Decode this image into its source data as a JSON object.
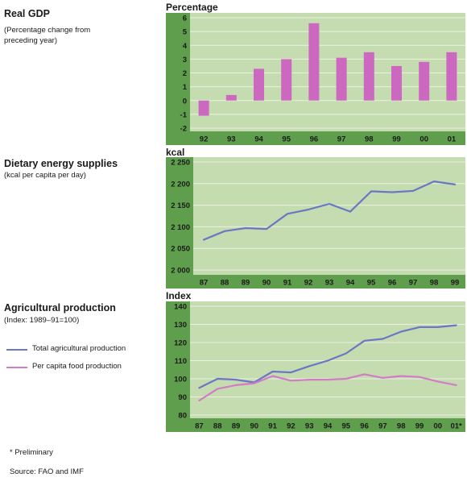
{
  "colors": {
    "plot_bg": "#c5dcb0",
    "axis_bg": "#5f9e4c",
    "grid": "#e9f1df",
    "bar": "#cc68c0",
    "line_total": "#6b76c4",
    "line_percapita": "#d27cc6",
    "label_text": "#1a1a1a"
  },
  "sections": {
    "gdp": {
      "title": "Real GDP",
      "subtitle": "(Percentage change from\npreceding year)",
      "unit": "Percentage"
    },
    "diet": {
      "title": "Dietary energy supplies",
      "subtitle": "(kcal per capita per day)",
      "unit": "kcal"
    },
    "agri": {
      "title": "Agricultural production",
      "subtitle": "(Index: 1989–91=100)",
      "unit": "Index"
    }
  },
  "legend": {
    "total": "Total agricultural production",
    "percapita": "Per capita food production"
  },
  "footnotes": {
    "preliminary": "* Preliminary",
    "source": "Source: FAO  and IMF"
  },
  "chart_data": [
    {
      "id": "gdp",
      "type": "bar",
      "title": "Real GDP",
      "subtitle": "(Percentage change from preceding year)",
      "ylabel": "Percentage",
      "categories": [
        "92",
        "93",
        "94",
        "95",
        "96",
        "97",
        "98",
        "99",
        "00",
        "01"
      ],
      "values": [
        -1.1,
        0.4,
        2.3,
        3.0,
        5.6,
        3.1,
        3.5,
        2.5,
        2.8,
        3.5
      ],
      "ylim": [
        -2,
        6
      ],
      "yticks": [
        -2,
        -1,
        0,
        1,
        2,
        3,
        4,
        5,
        6
      ],
      "ytick_labels": [
        "-2",
        "-1",
        "0",
        "1",
        "2",
        "3",
        "4",
        "5",
        "6"
      ],
      "grid": true
    },
    {
      "id": "diet",
      "type": "line",
      "title": "Dietary energy supplies",
      "subtitle": "(kcal per capita per day)",
      "ylabel": "kcal",
      "x": [
        "87",
        "88",
        "89",
        "90",
        "91",
        "92",
        "93",
        "94",
        "95",
        "96",
        "97",
        "98",
        "99"
      ],
      "series": [
        {
          "values": [
            2070,
            2090,
            2097,
            2095,
            2130,
            2140,
            2153,
            2135,
            2182,
            2180,
            2183,
            2205,
            2198
          ]
        }
      ],
      "ylim": [
        2000,
        2250
      ],
      "yticks": [
        2000,
        2050,
        2100,
        2150,
        2200,
        2250
      ],
      "ytick_labels": [
        "2 000",
        "2 050",
        "2 100",
        "2 150",
        "2 200",
        "2 250"
      ],
      "grid": true
    },
    {
      "id": "agri",
      "type": "line",
      "title": "Agricultural production",
      "subtitle": "(Index: 1989–91=100)",
      "ylabel": "Index",
      "x": [
        "87",
        "88",
        "89",
        "90",
        "91",
        "92",
        "93",
        "94",
        "95",
        "96",
        "97",
        "98",
        "99",
        "00",
        "01*"
      ],
      "series": [
        {
          "name": "Total agricultural production",
          "values": [
            95,
            100,
            99.5,
            98,
            104,
            103.5,
            107,
            110,
            114,
            121,
            122,
            126,
            128.5,
            128.5,
            129.5
          ]
        },
        {
          "name": "Per capita food production",
          "values": [
            88,
            94.5,
            96.5,
            97.5,
            101.5,
            99,
            99.5,
            99.5,
            100,
            102.5,
            100.5,
            101.5,
            101,
            98.5,
            96.5
          ]
        }
      ],
      "ylim": [
        80,
        140
      ],
      "yticks": [
        80,
        90,
        100,
        110,
        120,
        130,
        140
      ],
      "ytick_labels": [
        "80",
        "90",
        "100",
        "110",
        "120",
        "130",
        "140"
      ],
      "legend_position": "left",
      "grid": true
    }
  ]
}
